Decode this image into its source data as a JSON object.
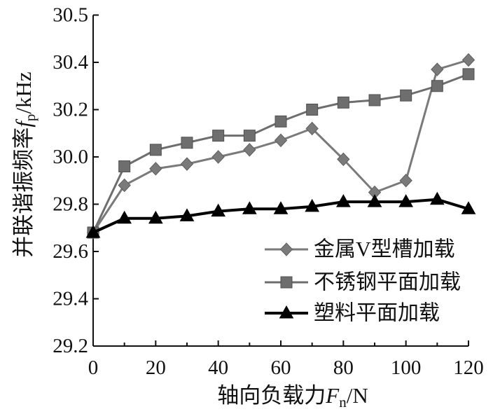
{
  "chart_data": {
    "type": "line",
    "xlabel": {
      "text": "轴向负载力",
      "symbol": "F",
      "subscript": "n",
      "unit": "/N"
    },
    "ylabel": {
      "text": "并联谐振频率",
      "symbol": "f",
      "subscript": "p",
      "unit": "/kHz"
    },
    "xlim": [
      0,
      120
    ],
    "ylim": [
      29.2,
      30.6
    ],
    "xticks": [
      "0",
      "20",
      "40",
      "60",
      "80",
      "100",
      "120"
    ],
    "yticks": [
      "29.2",
      "29.4",
      "29.6",
      "29.8",
      "30.0",
      "30.2",
      "30.4",
      "30.5"
    ],
    "grid": false,
    "legend": {
      "position": "bottom-right"
    },
    "x": [
      0,
      10,
      20,
      30,
      40,
      50,
      60,
      70,
      80,
      90,
      100,
      110,
      120
    ],
    "series": [
      {
        "name": "金属V型槽加载",
        "marker": "diamond",
        "color": "#7a7a7a",
        "values": [
          29.68,
          29.88,
          29.95,
          29.97,
          30.0,
          30.03,
          30.07,
          30.12,
          29.99,
          29.85,
          29.9,
          30.37,
          30.41
        ]
      },
      {
        "name": "不锈钢平面加载",
        "marker": "square",
        "color": "#6e6e6e",
        "values": [
          29.68,
          29.96,
          30.03,
          30.06,
          30.09,
          30.09,
          30.15,
          30.2,
          30.23,
          30.24,
          30.26,
          30.3,
          30.35
        ]
      },
      {
        "name": "塑料平面加载",
        "marker": "triangle",
        "color": "#000000",
        "values": [
          29.68,
          29.74,
          29.74,
          29.75,
          29.77,
          29.78,
          29.78,
          29.79,
          29.81,
          29.81,
          29.81,
          29.82,
          29.78
        ]
      }
    ]
  }
}
